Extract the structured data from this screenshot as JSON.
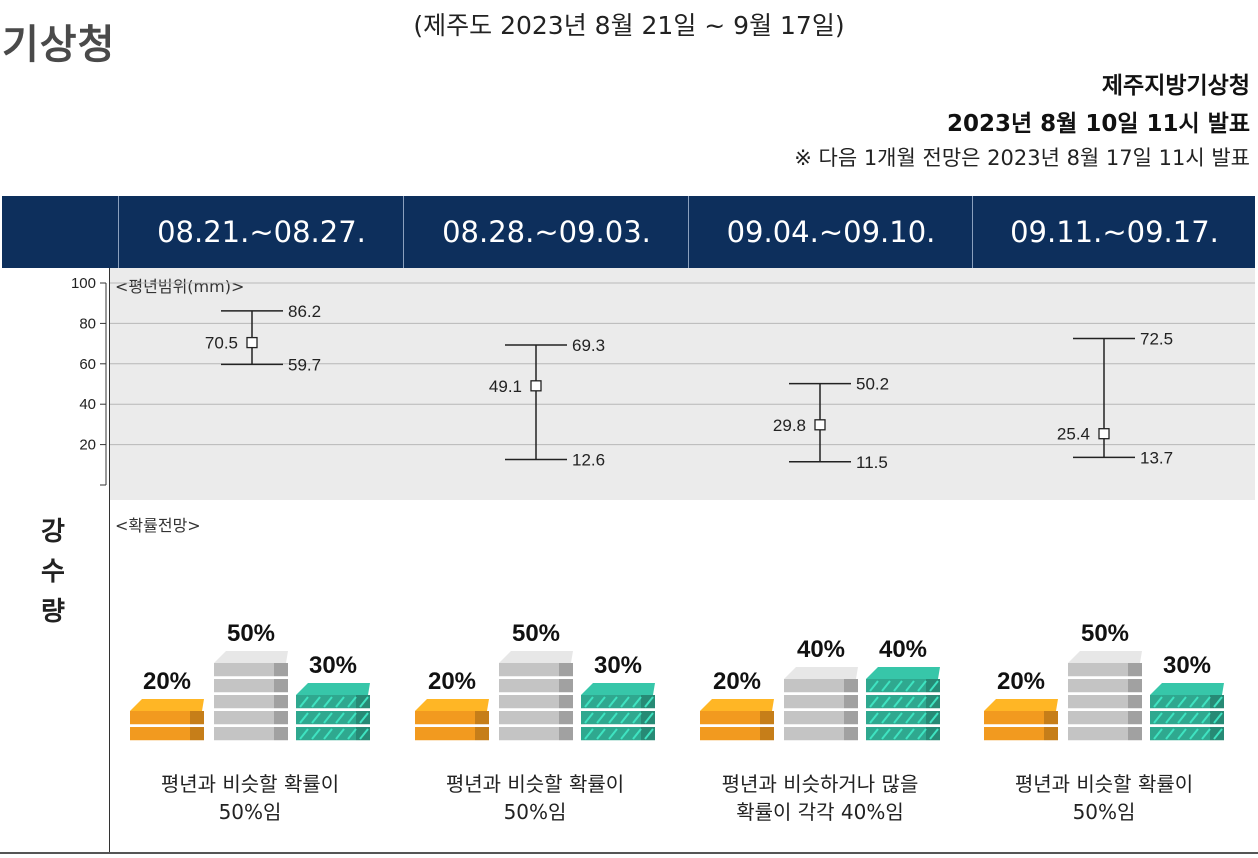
{
  "header": {
    "logo": "기상청",
    "period": "(제주도 2023년 8월 21일 ~ 9월 17일)",
    "office": "제주지방기상청",
    "issued": "2023년 8월 10일 11시 발표",
    "next_note": "※ 다음 1개월 전망은 2023년 8월 17일 11시 발표"
  },
  "weeks": [
    "08.21.~08.27.",
    "08.28.~09.03.",
    "09.04.~09.10.",
    "09.11.~09.17."
  ],
  "side_title": [
    "강",
    "수",
    "량"
  ],
  "range_section_title": "<평년범위(mm)>",
  "prob_section_title": "<확률전망>",
  "chart_data": {
    "type": "range",
    "title": "<평년범위(mm)>",
    "ylabel": "",
    "ylim": [
      0,
      100
    ],
    "yticks": [
      20,
      40,
      60,
      80,
      100
    ],
    "categories": [
      "08.21.~08.27.",
      "08.28.~09.03.",
      "09.04.~09.10.",
      "09.11.~09.17."
    ],
    "ranges": [
      {
        "low": 59.7,
        "mid": 70.5,
        "high": 86.2
      },
      {
        "low": 12.6,
        "mid": 49.1,
        "high": 69.3
      },
      {
        "low": 11.5,
        "mid": 29.8,
        "high": 50.2
      },
      {
        "low": 13.7,
        "mid": 25.4,
        "high": 72.5
      }
    ],
    "grid": true
  },
  "probability": {
    "colors": {
      "below": "#f29a1f",
      "normal": "#c4c4c4",
      "above": "#2fa88f"
    },
    "weeks": [
      {
        "below": 20,
        "normal": 50,
        "above": 30,
        "below_label": "20%",
        "normal_label": "50%",
        "above_label": "30%",
        "caption": [
          "평년과 비슷할 확률이",
          "50%임"
        ]
      },
      {
        "below": 20,
        "normal": 50,
        "above": 30,
        "below_label": "20%",
        "normal_label": "50%",
        "above_label": "30%",
        "caption": [
          "평년과 비슷할 확률이",
          "50%임"
        ]
      },
      {
        "below": 20,
        "normal": 40,
        "above": 40,
        "below_label": "20%",
        "normal_label": "40%",
        "above_label": "40%",
        "caption": [
          "평년과 비슷하거나 많을",
          "확률이 각각 40%임"
        ]
      },
      {
        "below": 20,
        "normal": 50,
        "above": 30,
        "below_label": "20%",
        "normal_label": "50%",
        "above_label": "30%",
        "caption": [
          "평년과 비슷할 확률이",
          "50%임"
        ]
      }
    ]
  }
}
